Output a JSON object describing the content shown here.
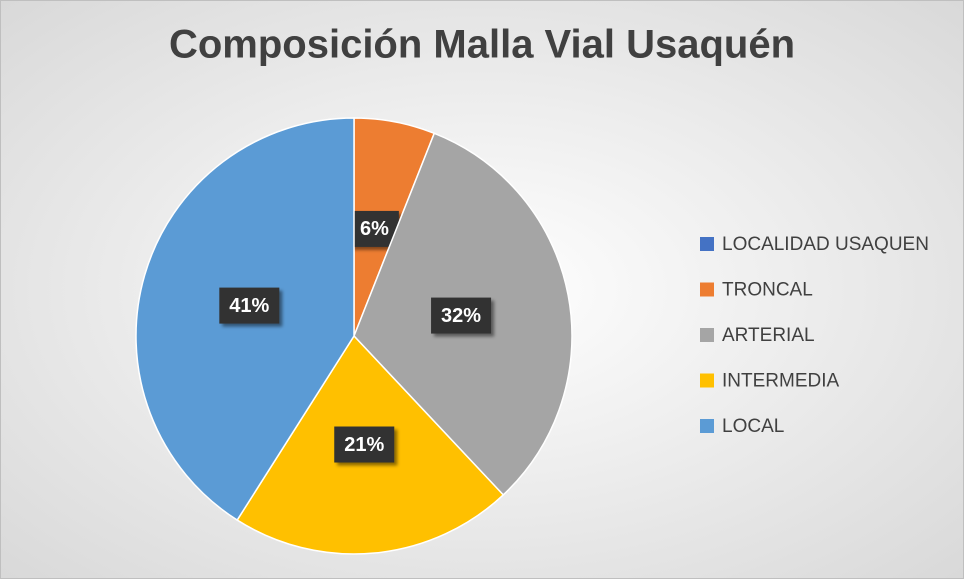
{
  "chart_data": {
    "type": "pie",
    "title": "Composición Malla Vial Usaquén",
    "categories": [
      "LOCALIDAD USAQUEN",
      "TRONCAL",
      "ARTERIAL",
      "INTERMEDIA",
      "LOCAL"
    ],
    "values": [
      0,
      6,
      32,
      21,
      41
    ],
    "value_labels": [
      null,
      "6%",
      "32%",
      "21%",
      "41%"
    ],
    "colors": [
      "#4472c4",
      "#ed7d31",
      "#a5a5a5",
      "#ffc000",
      "#5b9bd5"
    ],
    "legend": "right"
  }
}
